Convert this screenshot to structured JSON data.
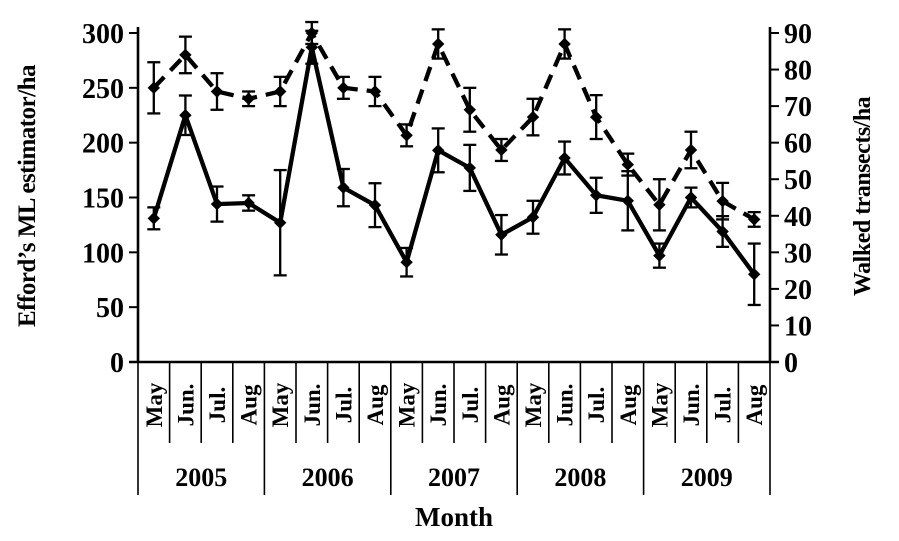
{
  "figure": {
    "left_axis_title": "Efford’s ML estimator/ha",
    "right_axis_title": "Walked transects/ha",
    "x_axis_title": "Month",
    "background": "#ffffff",
    "ink_color": "#000000"
  },
  "chart_data": {
    "type": "line",
    "title": "",
    "x_label": "Month",
    "grid": false,
    "legend": "none",
    "error_bars": true,
    "years": [
      "2005",
      "2006",
      "2007",
      "2008",
      "2009"
    ],
    "months_per_year": [
      "May",
      "Jun.",
      "Jul.",
      "Aug"
    ],
    "left_axis": {
      "label": "Efford’s ML estimator/ha",
      "min": 0,
      "max": 300,
      "tick_step": 50,
      "ticks": [
        0,
        50,
        100,
        150,
        200,
        250,
        300
      ]
    },
    "right_axis": {
      "label": "Walked transects/ha",
      "min": 0,
      "max": 90,
      "tick_step": 10,
      "ticks": [
        0,
        10,
        20,
        30,
        40,
        50,
        60,
        70,
        80,
        90
      ]
    },
    "series": [
      {
        "name": "Walked transects/ha",
        "axis": "right",
        "line_style": "dashed",
        "marker": "diamond",
        "values": [
          75,
          84,
          74,
          72,
          74,
          90,
          75,
          74,
          62,
          87,
          69,
          58,
          67,
          87,
          67,
          54,
          43,
          58,
          44,
          39
        ],
        "errors": [
          7,
          5,
          5,
          2,
          4,
          3,
          3,
          4,
          3,
          4,
          6,
          3,
          5,
          4,
          6,
          3,
          7,
          5,
          5,
          2
        ]
      },
      {
        "name": "Efford’s ML estimator/ha",
        "axis": "left",
        "line_style": "solid",
        "marker": "diamond",
        "values": [
          131,
          225,
          144,
          145,
          127,
          287,
          159,
          143,
          91,
          193,
          177,
          116,
          132,
          186,
          152,
          147,
          97,
          150,
          119,
          80
        ],
        "errors": [
          10,
          18,
          16,
          7,
          48,
          15,
          17,
          20,
          13,
          20,
          21,
          18,
          15,
          15,
          16,
          27,
          11,
          9,
          14,
          28
        ]
      }
    ]
  }
}
